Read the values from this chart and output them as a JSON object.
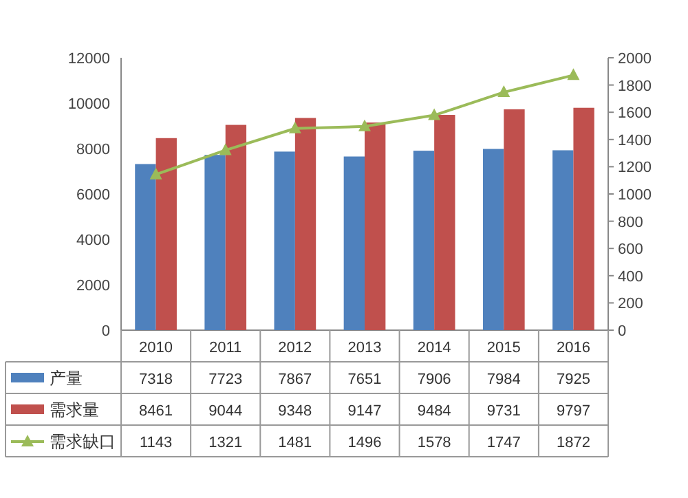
{
  "chart_data": {
    "type": "bar",
    "categories": [
      "2010",
      "2011",
      "2012",
      "2013",
      "2014",
      "2015",
      "2016"
    ],
    "series": [
      {
        "name": "产量",
        "color": "#4f81bd",
        "values": [
          7318,
          7723,
          7867,
          7651,
          7906,
          7984,
          7925
        ]
      },
      {
        "name": "需求量",
        "color": "#c0504d",
        "values": [
          8461,
          9044,
          9348,
          9147,
          9484,
          9731,
          9797
        ]
      },
      {
        "name": "需求缺口",
        "color": "#9bbb59",
        "type": "line",
        "axis": "y2",
        "marker": "triangle",
        "values": [
          1143,
          1321,
          1481,
          1496,
          1578,
          1747,
          1872
        ]
      }
    ],
    "ylim": [
      0,
      12000
    ],
    "yticks": [
      0,
      2000,
      4000,
      6000,
      8000,
      10000,
      12000
    ],
    "y2lim": [
      0,
      2000
    ],
    "y2ticks": [
      0,
      200,
      400,
      600,
      800,
      1000,
      1200,
      1400,
      1600,
      1800,
      2000
    ],
    "data_labels": true,
    "legend": "bottom left"
  }
}
